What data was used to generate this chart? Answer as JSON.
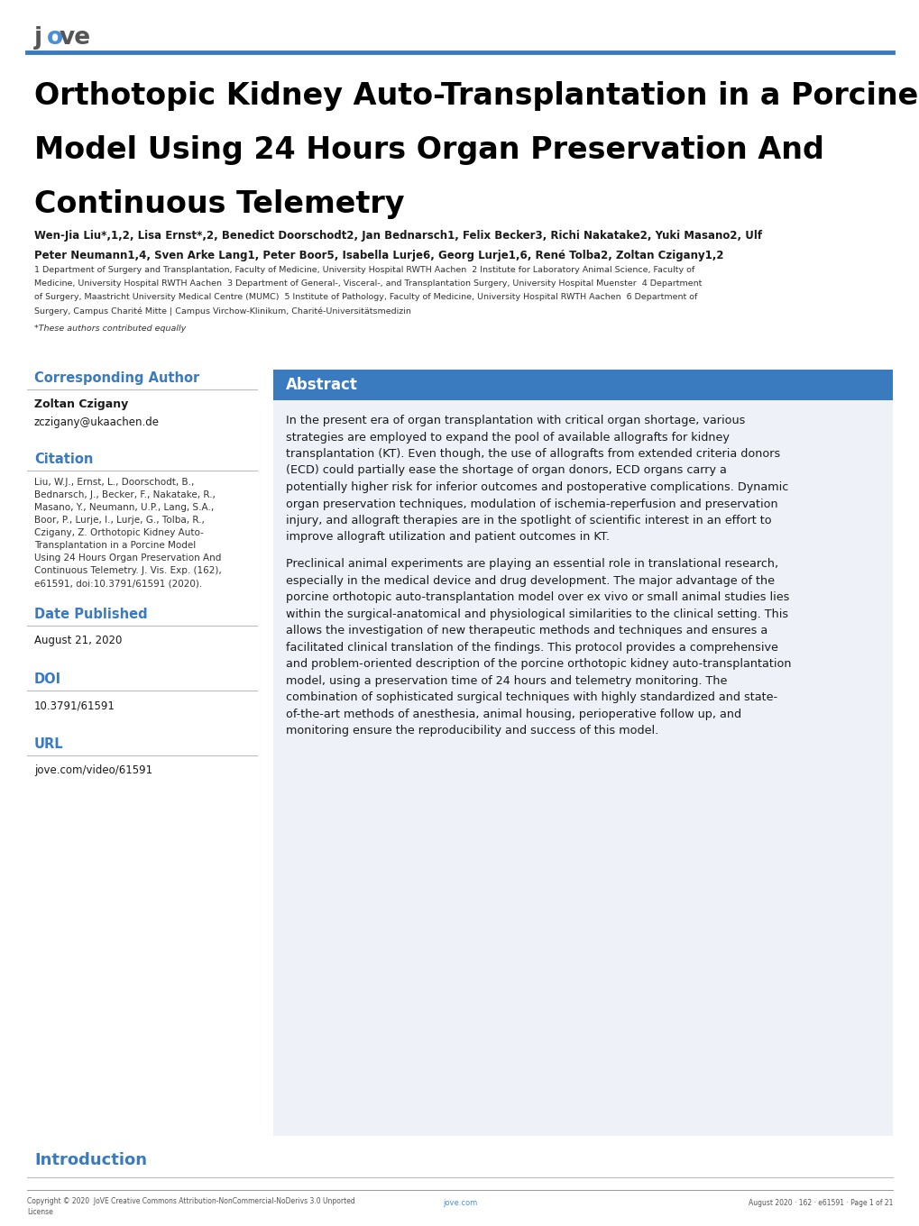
{
  "page_bg": "#ffffff",
  "header_line_color": "#3a7abf",
  "footer_line_color": "#888888",
  "jove_color_j": "#555555",
  "jove_color_o": "#4a90d9",
  "jove_color_ve": "#555555",
  "title_line1": "Orthotopic Kidney Auto-Transplantation in a Porcine",
  "title_line2": "Model Using 24 Hours Organ Preservation And",
  "title_line3": "Continuous Telemetry",
  "title_fontsize": 26,
  "title_color": "#000000",
  "authors_line1": "Wen-Jia Liu*,1,2, Lisa Ernst*,2, Benedict Doorschodt2, Jan Bednarsch1, Felix Becker3, Richi Nakatake2, Yuki Masano2, Ulf",
  "authors_line2": "Peter Neumann1,4, Sven Arke Lang1, Peter Boor5, Isabella Lurje6, Georg Lurje1,6, René Tolba2, Zoltan Czigany1,2",
  "aff_line1": "1 Department of Surgery and Transplantation, Faculty of Medicine, University Hospital RWTH Aachen  2 Institute for Laboratory Animal Science, Faculty of",
  "aff_line2": "Medicine, University Hospital RWTH Aachen  3 Department of General-, Visceral-, and Transplantation Surgery, University Hospital Muenster  4 Department",
  "aff_line3": "of Surgery, Maastricht University Medical Centre (MUMC)  5 Institute of Pathology, Faculty of Medicine, University Hospital RWTH Aachen  6 Department of",
  "aff_line4": "Surgery, Campus Charité Mitte | Campus Virchow-Klinikum, Charité-Universitätsmedizin",
  "equal_contrib": "*These authors contributed equally",
  "corresponding_author_label": "Corresponding Author",
  "corresponding_author_name": "Zoltan Czigany",
  "corresponding_author_email": "zczigany@ukaachen.de",
  "citation_label": "Citation",
  "citation_lines": [
    "Liu, W.J., Ernst, L., Doorschodt, B.,",
    "Bednarsch, J., Becker, F., Nakatake, R.,",
    "Masano, Y., Neumann, U.P., Lang, S.A.,",
    "Boor, P., Lurje, I., Lurje, G., Tolba, R.,",
    "Czigany, Z. Orthotopic Kidney Auto-",
    "Transplantation in a Porcine Model",
    "Using 24 Hours Organ Preservation And",
    "Continuous Telemetry. J. Vis. Exp. (162),",
    "e61591, doi:10.3791/61591 (2020)."
  ],
  "date_published_label": "Date Published",
  "date_published_text": "August 21, 2020",
  "doi_label": "DOI",
  "doi_text": "10.3791/61591",
  "url_label": "URL",
  "url_text": "jove.com/video/61591",
  "abstract_header": "Abstract",
  "abstract_header_bg": "#3a7abf",
  "abstract_header_color": "#ffffff",
  "abstract_para1_lines": [
    "In the present era of organ transplantation with critical organ shortage, various",
    "strategies are employed to expand the pool of available allografts for kidney",
    "transplantation (KT). Even though, the use of allografts from extended criteria donors",
    "(ECD) could partially ease the shortage of organ donors, ECD organs carry a",
    "potentially higher risk for inferior outcomes and postoperative complications. Dynamic",
    "organ preservation techniques, modulation of ischemia-reperfusion and preservation",
    "injury, and allograft therapies are in the spotlight of scientific interest in an effort to",
    "improve allograft utilization and patient outcomes in KT."
  ],
  "abstract_para2_lines": [
    "Preclinical animal experiments are playing an essential role in translational research,",
    "especially in the medical device and drug development. The major advantage of the",
    "porcine orthotopic auto-transplantation model over ex vivo or small animal studies lies",
    "within the surgical-anatomical and physiological similarities to the clinical setting. This",
    "allows the investigation of new therapeutic methods and techniques and ensures a",
    "facilitated clinical translation of the findings. This protocol provides a comprehensive",
    "and problem-oriented description of the porcine orthotopic kidney auto-transplantation",
    "model, using a preservation time of 24 hours and telemetry monitoring. The",
    "combination of sophisticated surgical techniques with highly standardized and state-",
    "of-the-art methods of anesthesia, animal housing, perioperative follow up, and",
    "monitoring ensure the reproducibility and success of this model."
  ],
  "introduction_label": "Introduction",
  "introduction_color": "#3a7abf",
  "footer_copyright": "Copyright © 2020  JoVE Creative Commons Attribution-NonCommercial-NoDerivs 3.0 Unported",
  "footer_copyright2": "License",
  "footer_url": "jove.com",
  "footer_url_color": "#4a90d9",
  "footer_right": "August 2020 · 162 · e61591 · Page 1 of 21",
  "label_color": "#3a7abf",
  "divider_color": "#bbbbbb",
  "text_color": "#1a1a1a",
  "small_text_color": "#333333",
  "abstract_bg": "#eef2f8"
}
